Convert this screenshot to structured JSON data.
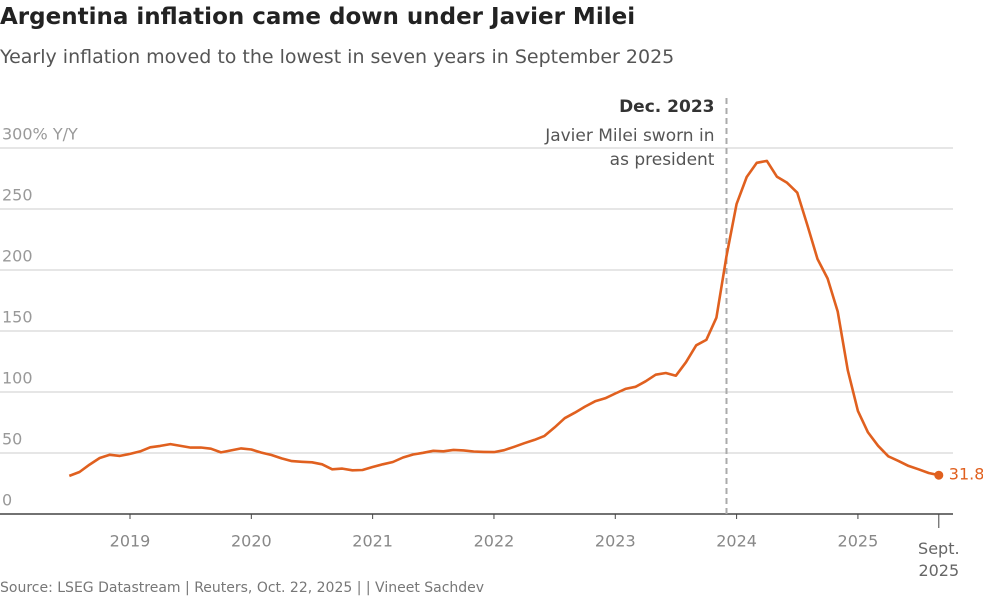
{
  "chart_data": {
    "type": "line",
    "title": "Argentina inflation came down under Javier Milei",
    "subtitle": "Yearly inflation moved to the lowest in seven years in September 2025",
    "source": "Source: LSEG Datastream | Reuters, Oct. 22, 2025 |  | Vineet Sachdev",
    "annotation": {
      "x": "2023-12",
      "title": "Dec. 2023",
      "text": "Javier Milei sworn in as president"
    },
    "x": [
      "2018-07",
      "2018-08",
      "2018-09",
      "2018-10",
      "2018-11",
      "2018-12",
      "2019-01",
      "2019-02",
      "2019-03",
      "2019-04",
      "2019-05",
      "2019-06",
      "2019-07",
      "2019-08",
      "2019-09",
      "2019-10",
      "2019-11",
      "2019-12",
      "2020-01",
      "2020-02",
      "2020-03",
      "2020-04",
      "2020-05",
      "2020-06",
      "2020-07",
      "2020-08",
      "2020-09",
      "2020-10",
      "2020-11",
      "2020-12",
      "2021-01",
      "2021-02",
      "2021-03",
      "2021-04",
      "2021-05",
      "2021-06",
      "2021-07",
      "2021-08",
      "2021-09",
      "2021-10",
      "2021-11",
      "2021-12",
      "2022-01",
      "2022-02",
      "2022-03",
      "2022-04",
      "2022-05",
      "2022-06",
      "2022-07",
      "2022-08",
      "2022-09",
      "2022-10",
      "2022-11",
      "2022-12",
      "2023-01",
      "2023-02",
      "2023-03",
      "2023-04",
      "2023-05",
      "2023-06",
      "2023-07",
      "2023-08",
      "2023-09",
      "2023-10",
      "2023-11",
      "2023-12",
      "2024-01",
      "2024-02",
      "2024-03",
      "2024-04",
      "2024-05",
      "2024-06",
      "2024-07",
      "2024-08",
      "2024-09",
      "2024-10",
      "2024-11",
      "2024-12",
      "2025-01",
      "2025-02",
      "2025-03",
      "2025-04",
      "2025-05",
      "2025-06",
      "2025-07",
      "2025-08",
      "2025-09"
    ],
    "series": [
      {
        "name": "Yearly inflation",
        "color": "#e0601f",
        "values": [
          31.2,
          34.4,
          40.5,
          45.9,
          48.5,
          47.6,
          49.3,
          51.3,
          54.7,
          55.8,
          57.3,
          55.8,
          54.4,
          54.5,
          53.5,
          50.5,
          52.1,
          53.8,
          52.9,
          50.3,
          48.4,
          45.6,
          43.4,
          42.8,
          42.4,
          40.7,
          36.6,
          37.2,
          35.8,
          36.1,
          38.5,
          40.7,
          42.6,
          46.3,
          48.8,
          50.2,
          51.8,
          51.4,
          52.5,
          52.1,
          51.2,
          50.9,
          50.7,
          52.3,
          55.1,
          58.0,
          60.7,
          64.0,
          71.0,
          78.5,
          83.0,
          88.0,
          92.4,
          94.8,
          98.8,
          102.5,
          104.3,
          108.8,
          114.2,
          115.6,
          113.4,
          124.4,
          138.3,
          142.7,
          160.9,
          211.4,
          254.2,
          276.2,
          287.9,
          289.4,
          276.4,
          271.5,
          263.4,
          236.7,
          209.0,
          193.0,
          166.0,
          117.8,
          84.5,
          66.9,
          55.9,
          47.3,
          43.5,
          39.4,
          36.6,
          33.6,
          31.8
        ]
      }
    ],
    "ylim": [
      0,
      300
    ],
    "yticks": [
      0,
      50,
      100,
      150,
      200,
      250,
      {
        "value": 300,
        "label": "300% Y/Y"
      }
    ],
    "xticks": [
      {
        "value": "2019-01",
        "label": "2019"
      },
      {
        "value": "2020-01",
        "label": "2020"
      },
      {
        "value": "2021-01",
        "label": "2021"
      },
      {
        "value": "2022-01",
        "label": "2022"
      },
      {
        "value": "2023-01",
        "label": "2023"
      },
      {
        "value": "2024-01",
        "label": "2024"
      },
      {
        "value": "2025-01",
        "label": "2025"
      },
      {
        "value": "2025-09",
        "label": "Sept. 2025"
      }
    ],
    "grid": true
  }
}
